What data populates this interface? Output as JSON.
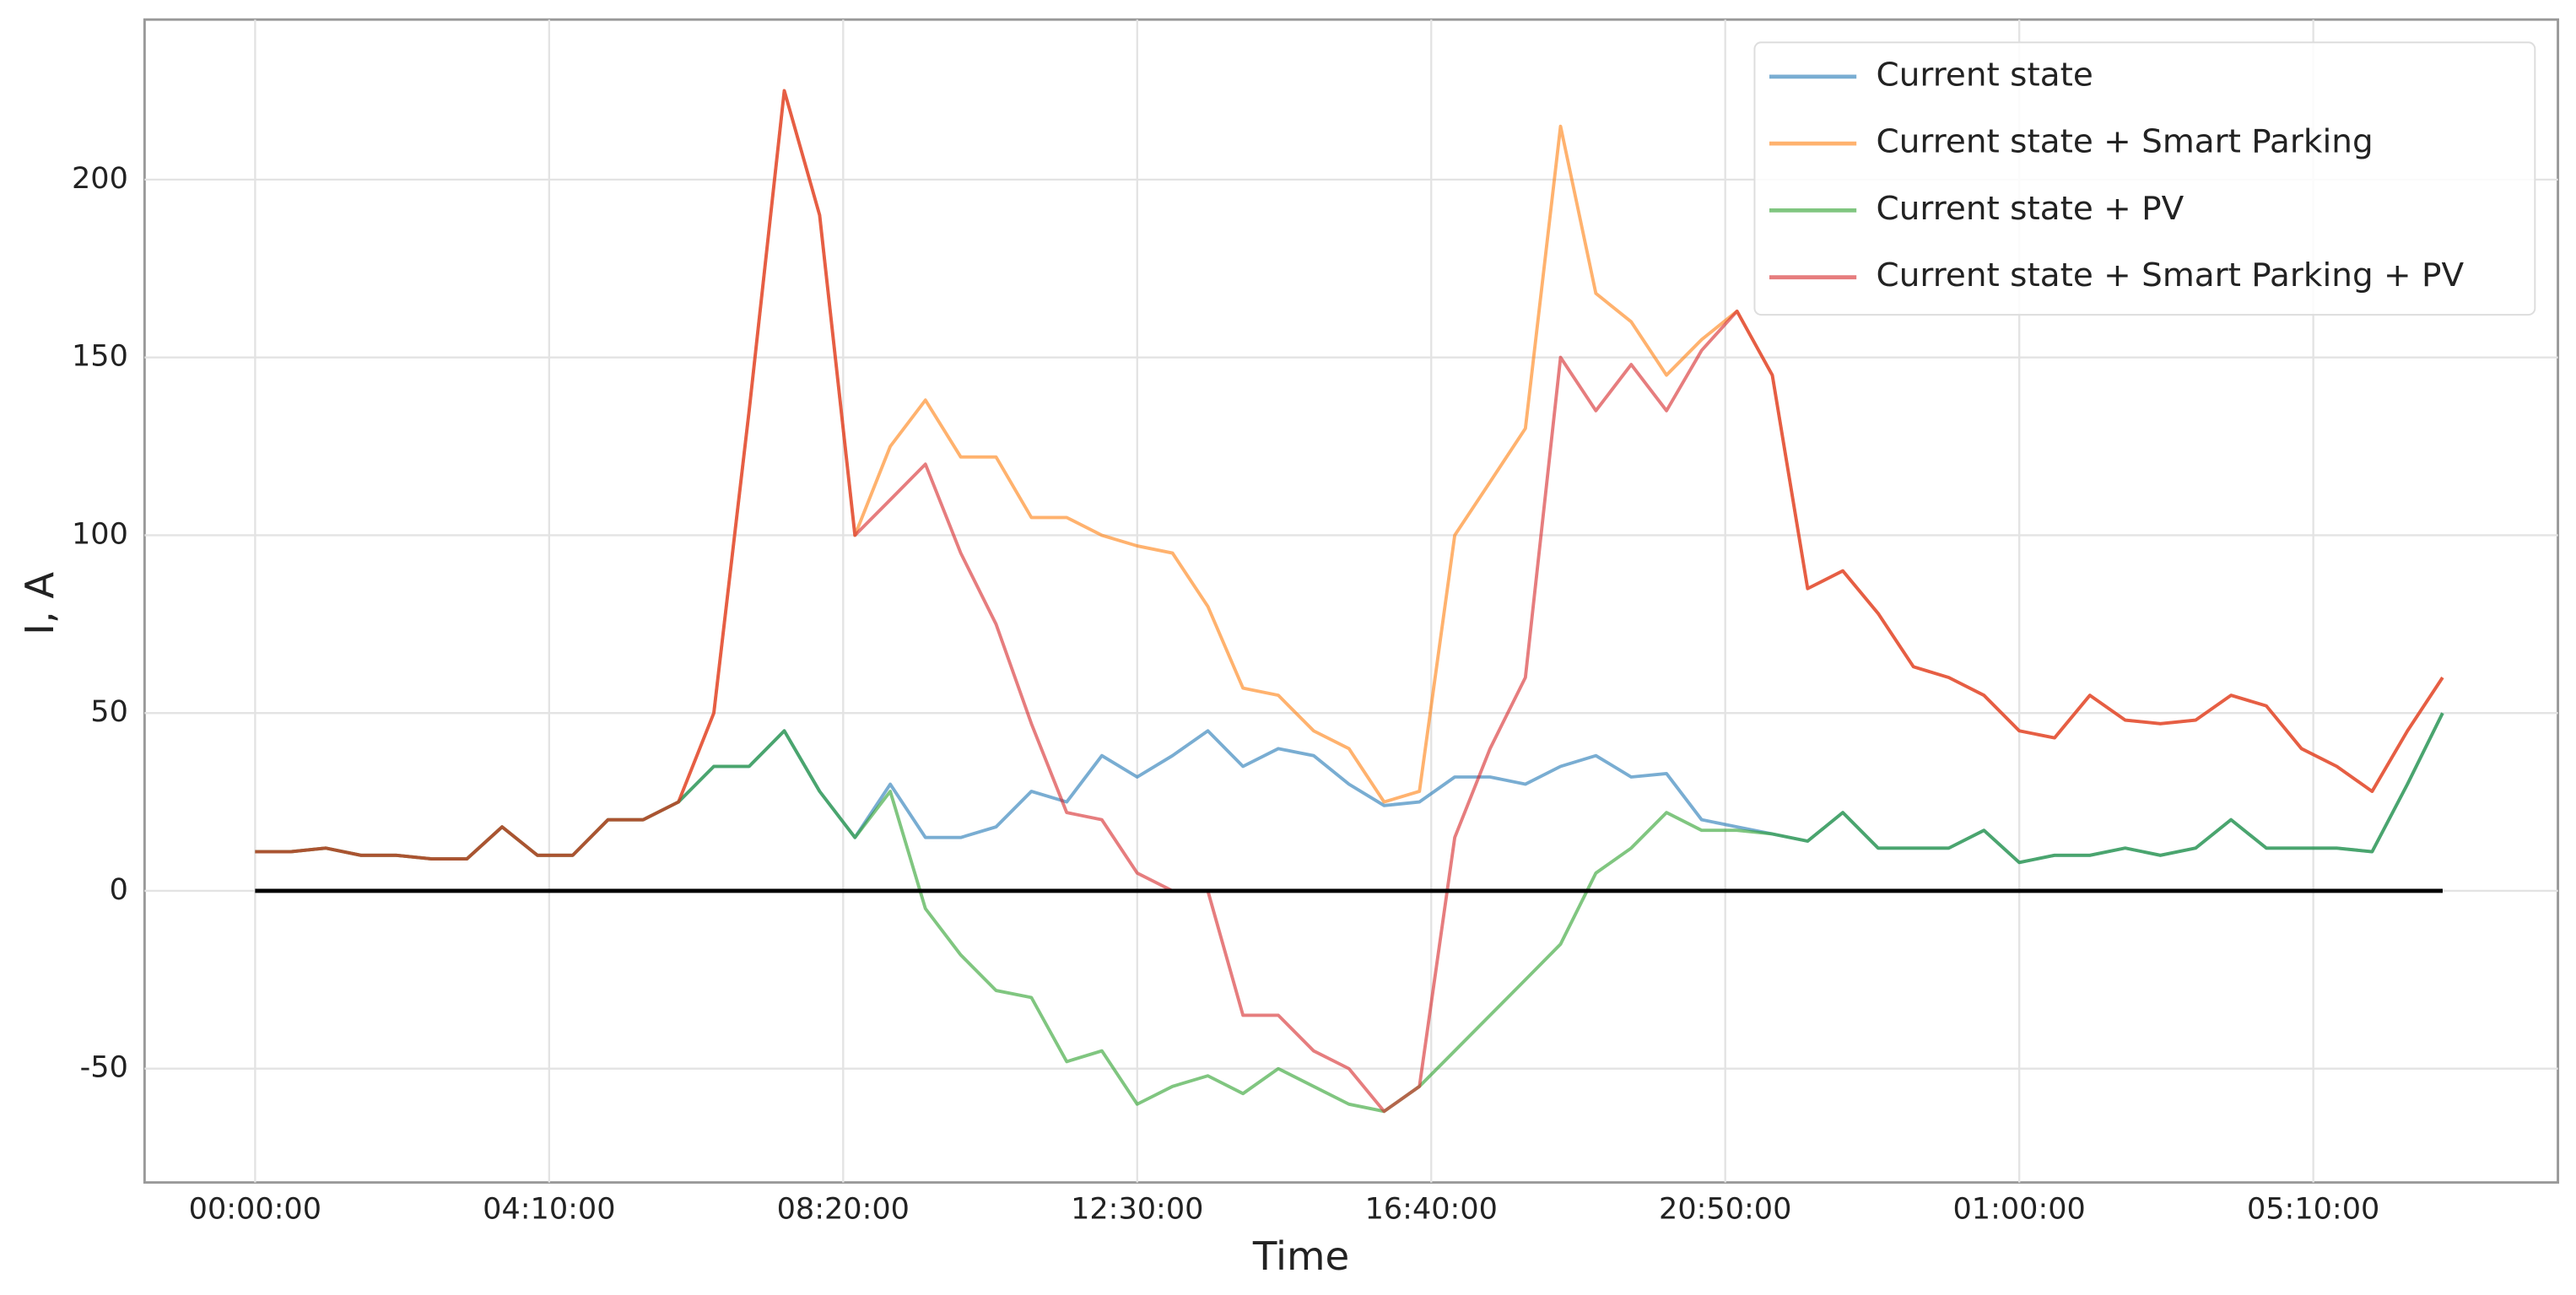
{
  "chart_data": {
    "type": "line",
    "xlabel": "Time",
    "ylabel": "I, A",
    "x": [
      0,
      30,
      60,
      90,
      120,
      150,
      180,
      210,
      240,
      270,
      300,
      330,
      360,
      390,
      420,
      450,
      480,
      510,
      540,
      570,
      600,
      630,
      660,
      690,
      720,
      750,
      780,
      810,
      840,
      870,
      900,
      930,
      960,
      990,
      1020,
      1050,
      1080,
      1110,
      1140,
      1170,
      1200,
      1230,
      1260,
      1290,
      1320,
      1350,
      1380,
      1410,
      1440,
      1470,
      1500,
      1530,
      1560,
      1590,
      1620,
      1650,
      1680,
      1710,
      1740,
      1770,
      1800,
      1830,
      1860
    ],
    "series": [
      {
        "name": "Current state",
        "color": "#1f77b4",
        "values": [
          11,
          11,
          12,
          10,
          10,
          9,
          9,
          18,
          10,
          10,
          20,
          20,
          25,
          35,
          35,
          45,
          28,
          15,
          30,
          15,
          15,
          18,
          28,
          25,
          38,
          32,
          38,
          45,
          35,
          40,
          38,
          30,
          24,
          25,
          32,
          32,
          30,
          35,
          38,
          32,
          33,
          20,
          18,
          16,
          14,
          22,
          12,
          12,
          12,
          17,
          8,
          10,
          10,
          12,
          10,
          12,
          20,
          12,
          12,
          12,
          11,
          30,
          50
        ]
      },
      {
        "name": "Current state + Smart Parking",
        "color": "#ff7f0e",
        "values": [
          11,
          11,
          12,
          10,
          10,
          9,
          9,
          18,
          10,
          10,
          20,
          20,
          25,
          50,
          135,
          225,
          190,
          100,
          125,
          138,
          122,
          122,
          105,
          105,
          100,
          97,
          95,
          80,
          57,
          55,
          45,
          40,
          25,
          28,
          100,
          115,
          130,
          215,
          168,
          160,
          145,
          155,
          163,
          145,
          85,
          90,
          78,
          63,
          60,
          55,
          45,
          43,
          55,
          48,
          47,
          48,
          55,
          52,
          40,
          35,
          28,
          45,
          60
        ]
      },
      {
        "name": "Current state + PV",
        "color": "#2ca02c",
        "values": [
          11,
          11,
          12,
          10,
          10,
          9,
          9,
          18,
          10,
          10,
          20,
          20,
          25,
          35,
          35,
          45,
          28,
          15,
          28,
          -5,
          -18,
          -28,
          -30,
          -48,
          -45,
          -60,
          -55,
          -52,
          -57,
          -50,
          -55,
          -60,
          -62,
          -55,
          -45,
          -35,
          -25,
          -15,
          5,
          12,
          22,
          17,
          17,
          16,
          14,
          22,
          12,
          12,
          12,
          17,
          8,
          10,
          10,
          12,
          10,
          12,
          20,
          12,
          12,
          12,
          11,
          30,
          50
        ]
      },
      {
        "name": "Current state + Smart Parking + PV",
        "color": "#d62728",
        "values": [
          11,
          11,
          12,
          10,
          10,
          9,
          9,
          18,
          10,
          10,
          20,
          20,
          25,
          50,
          135,
          225,
          190,
          100,
          110,
          120,
          95,
          75,
          47,
          22,
          20,
          5,
          0,
          0,
          -35,
          -35,
          -45,
          -50,
          -62,
          -55,
          15,
          40,
          60,
          150,
          135,
          148,
          135,
          152,
          163,
          145,
          85,
          90,
          78,
          63,
          60,
          55,
          45,
          43,
          55,
          48,
          47,
          48,
          55,
          52,
          40,
          35,
          28,
          45,
          60
        ]
      }
    ],
    "hline": {
      "value": 0,
      "color": "#000000"
    },
    "xlim": [
      -94,
      1958
    ],
    "xticks": [
      {
        "value": 0,
        "label": "00:00:00"
      },
      {
        "value": 250,
        "label": "04:10:00"
      },
      {
        "value": 500,
        "label": "08:20:00"
      },
      {
        "value": 750,
        "label": "12:30:00"
      },
      {
        "value": 1000,
        "label": "16:40:00"
      },
      {
        "value": 1250,
        "label": "20:50:00"
      },
      {
        "value": 1500,
        "label": "01:00:00"
      },
      {
        "value": 1750,
        "label": "05:10:00"
      }
    ],
    "ylim": [
      -82,
      245
    ],
    "yticks": [
      -50,
      0,
      50,
      100,
      150,
      200
    ],
    "grid": true,
    "legend": "upper right"
  }
}
